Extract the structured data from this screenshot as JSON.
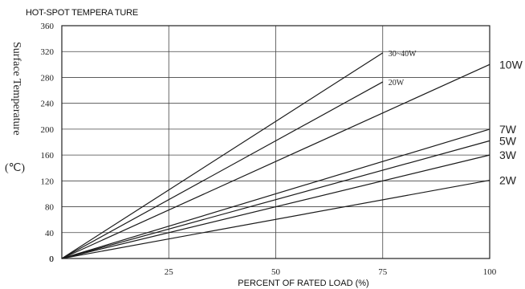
{
  "chart_data": {
    "type": "line",
    "title": "HOT-SPOT TEMPERA TURE",
    "xlabel": "PERCENT OF RATED LOAD (%)",
    "ylabel": "Surface Temperature",
    "ylabel_unit": "(℃)",
    "xlim": [
      0,
      100
    ],
    "ylim": [
      0,
      360
    ],
    "xticks": [
      25,
      50,
      75,
      100
    ],
    "yticks": [
      0,
      40,
      80,
      120,
      160,
      200,
      240,
      280,
      320,
      360
    ],
    "grid": true,
    "series": [
      {
        "name": "30~40W",
        "x": [
          0,
          75
        ],
        "y": [
          0,
          318
        ],
        "color": "#3a3a7a",
        "label_style": "inline"
      },
      {
        "name": "20W",
        "x": [
          0,
          75
        ],
        "y": [
          0,
          273
        ],
        "color": "#1a1a1a",
        "label_style": "inline"
      },
      {
        "name": "10W",
        "x": [
          0,
          100
        ],
        "y": [
          0,
          300
        ],
        "color": "#1a1a1a",
        "label_style": "right"
      },
      {
        "name": "7W",
        "x": [
          0,
          100
        ],
        "y": [
          0,
          200
        ],
        "color": "#1a1a1a",
        "label_style": "right"
      },
      {
        "name": "5W",
        "x": [
          0,
          100
        ],
        "y": [
          0,
          182
        ],
        "color": "#1a1a1a",
        "label_style": "right"
      },
      {
        "name": "3W",
        "x": [
          0,
          100
        ],
        "y": [
          0,
          160
        ],
        "color": "#1a1a1a",
        "label_style": "right"
      },
      {
        "name": "2W",
        "x": [
          0,
          100
        ],
        "y": [
          0,
          121
        ],
        "color": "#1a1a1a",
        "label_style": "right"
      }
    ]
  }
}
